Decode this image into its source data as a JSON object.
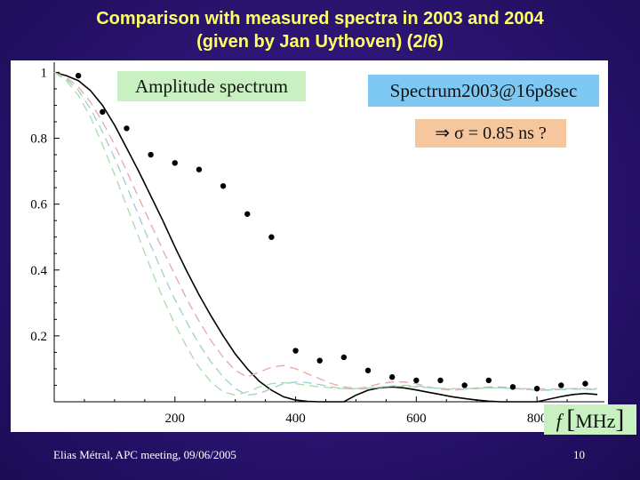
{
  "slide": {
    "title_line1": "Comparison with measured spectra in 2003 and 2004",
    "title_line2": "(given by Jan Uythoven) (2/6)",
    "footer_left": "Elias Métral, APC meeting, 09/06/2005",
    "page_number": "10"
  },
  "annotations": {
    "amplitude_label": "Amplitude spectrum",
    "spectrum_label": "Spectrum2003@16p8sec",
    "sigma_label": "⇒ σ = 0.85 ns ?",
    "unit_label": "f",
    "unit_value": "MHz"
  },
  "colors": {
    "title": "#ffff66",
    "background": "#2a1470",
    "amplitude_box": "#c8f0c0",
    "spectrum_box": "#7ec8f4",
    "sigma_box": "#f6c79e",
    "fit_curve": "#000000",
    "dash_red": "#e8a6a6",
    "dash_teal": "#9ccfcf",
    "dash_green": "#a8dca8",
    "dots": "#000000"
  },
  "chart_data": {
    "type": "line",
    "xlabel": "f [MHz]",
    "ylabel": "",
    "xlim": [
      0,
      900
    ],
    "ylim": [
      0,
      1.02
    ],
    "xticks": [
      200,
      400,
      600,
      800
    ],
    "yticks": [
      0.2,
      0.4,
      0.6,
      0.8,
      1
    ],
    "grid": false,
    "series": [
      {
        "style": "solid",
        "color": "#000000",
        "x": [
          0,
          20,
          40,
          60,
          80,
          100,
          120,
          140,
          160,
          180,
          200,
          220,
          240,
          260,
          280,
          300,
          320,
          340,
          360,
          380,
          400,
          420,
          440,
          460,
          480,
          500,
          520,
          540,
          560,
          580,
          600,
          620,
          640,
          660,
          680,
          700,
          720,
          740,
          760,
          780,
          800,
          820,
          840,
          860,
          880,
          900
        ],
        "values": [
          1.0,
          0.99,
          0.975,
          0.945,
          0.9,
          0.84,
          0.77,
          0.7,
          0.625,
          0.55,
          0.47,
          0.395,
          0.325,
          0.26,
          0.2,
          0.145,
          0.1,
          0.062,
          0.035,
          0.015,
          0.005,
          0.001,
          0.0,
          0.0,
          0.0,
          0.02,
          0.035,
          0.043,
          0.045,
          0.042,
          0.036,
          0.029,
          0.022,
          0.015,
          0.01,
          0.005,
          0.002,
          0.0,
          0.0,
          0.0,
          0.0,
          0.008,
          0.016,
          0.022,
          0.025,
          0.022
        ]
      },
      {
        "style": "dashed",
        "color": "#e8a6a6",
        "x": [
          0,
          20,
          40,
          60,
          80,
          100,
          120,
          140,
          160,
          180,
          200,
          220,
          240,
          260,
          280,
          300,
          320,
          340,
          360,
          380,
          400,
          420,
          440,
          460,
          480,
          500,
          520,
          540,
          560,
          580,
          600,
          620,
          640,
          660,
          680,
          700,
          720,
          740,
          760,
          780,
          800,
          820,
          840,
          860,
          880,
          900
        ],
        "values": [
          1.0,
          0.985,
          0.955,
          0.91,
          0.85,
          0.78,
          0.7,
          0.62,
          0.54,
          0.46,
          0.385,
          0.31,
          0.245,
          0.185,
          0.135,
          0.095,
          0.075,
          0.09,
          0.105,
          0.11,
          0.1,
          0.085,
          0.07,
          0.055,
          0.045,
          0.04,
          0.045,
          0.055,
          0.06,
          0.06,
          0.055,
          0.045,
          0.038,
          0.035,
          0.038,
          0.042,
          0.045,
          0.045,
          0.042,
          0.038,
          0.035,
          0.035,
          0.038,
          0.04,
          0.04,
          0.038
        ]
      },
      {
        "style": "dashed",
        "color": "#9ccfcf",
        "x": [
          0,
          20,
          40,
          60,
          80,
          100,
          120,
          140,
          160,
          180,
          200,
          220,
          240,
          260,
          280,
          300,
          320,
          340,
          360,
          380,
          400,
          420,
          440,
          460,
          480,
          500,
          520,
          540,
          560,
          580,
          600,
          620,
          640,
          660,
          680,
          700,
          720,
          740,
          760,
          780,
          800,
          820,
          840,
          860,
          880,
          900
        ],
        "values": [
          1.0,
          0.98,
          0.945,
          0.89,
          0.82,
          0.74,
          0.655,
          0.565,
          0.475,
          0.39,
          0.31,
          0.24,
          0.175,
          0.12,
          0.075,
          0.04,
          0.02,
          0.025,
          0.04,
          0.055,
          0.06,
          0.058,
          0.052,
          0.045,
          0.04,
          0.038,
          0.04,
          0.044,
          0.048,
          0.05,
          0.048,
          0.044,
          0.04,
          0.038,
          0.038,
          0.04,
          0.042,
          0.042,
          0.04,
          0.038,
          0.036,
          0.036,
          0.037,
          0.038,
          0.038,
          0.037
        ]
      },
      {
        "style": "dashed",
        "color": "#a8dca8",
        "x": [
          0,
          20,
          40,
          60,
          80,
          100,
          120,
          140,
          160,
          180,
          200,
          220,
          240,
          260,
          280,
          300,
          320,
          340,
          360,
          380,
          400,
          420,
          440,
          460,
          480,
          500,
          520,
          540,
          560,
          580,
          600,
          620,
          640,
          660,
          680,
          700,
          720,
          740,
          760,
          780,
          800,
          820,
          840,
          860,
          880,
          900
        ],
        "values": [
          1.0,
          0.975,
          0.93,
          0.865,
          0.78,
          0.69,
          0.595,
          0.5,
          0.405,
          0.315,
          0.235,
          0.165,
          0.105,
          0.06,
          0.03,
          0.02,
          0.03,
          0.045,
          0.055,
          0.058,
          0.055,
          0.05,
          0.045,
          0.042,
          0.04,
          0.04,
          0.042,
          0.045,
          0.047,
          0.047,
          0.045,
          0.043,
          0.041,
          0.04,
          0.04,
          0.041,
          0.042,
          0.042,
          0.041,
          0.04,
          0.039,
          0.039,
          0.039,
          0.04,
          0.04,
          0.04
        ]
      },
      {
        "style": "dots",
        "color": "#000000",
        "x": [
          40,
          80,
          120,
          160,
          200,
          240,
          280,
          320,
          360,
          400,
          440,
          480,
          520,
          560,
          600,
          640,
          680,
          720,
          760,
          800,
          840,
          880
        ],
        "values": [
          0.99,
          0.88,
          0.83,
          0.75,
          0.725,
          0.705,
          0.655,
          0.57,
          0.5,
          0.155,
          0.125,
          0.135,
          0.095,
          0.075,
          0.065,
          0.065,
          0.05,
          0.065,
          0.045,
          0.04,
          0.05,
          0.055
        ]
      }
    ]
  }
}
